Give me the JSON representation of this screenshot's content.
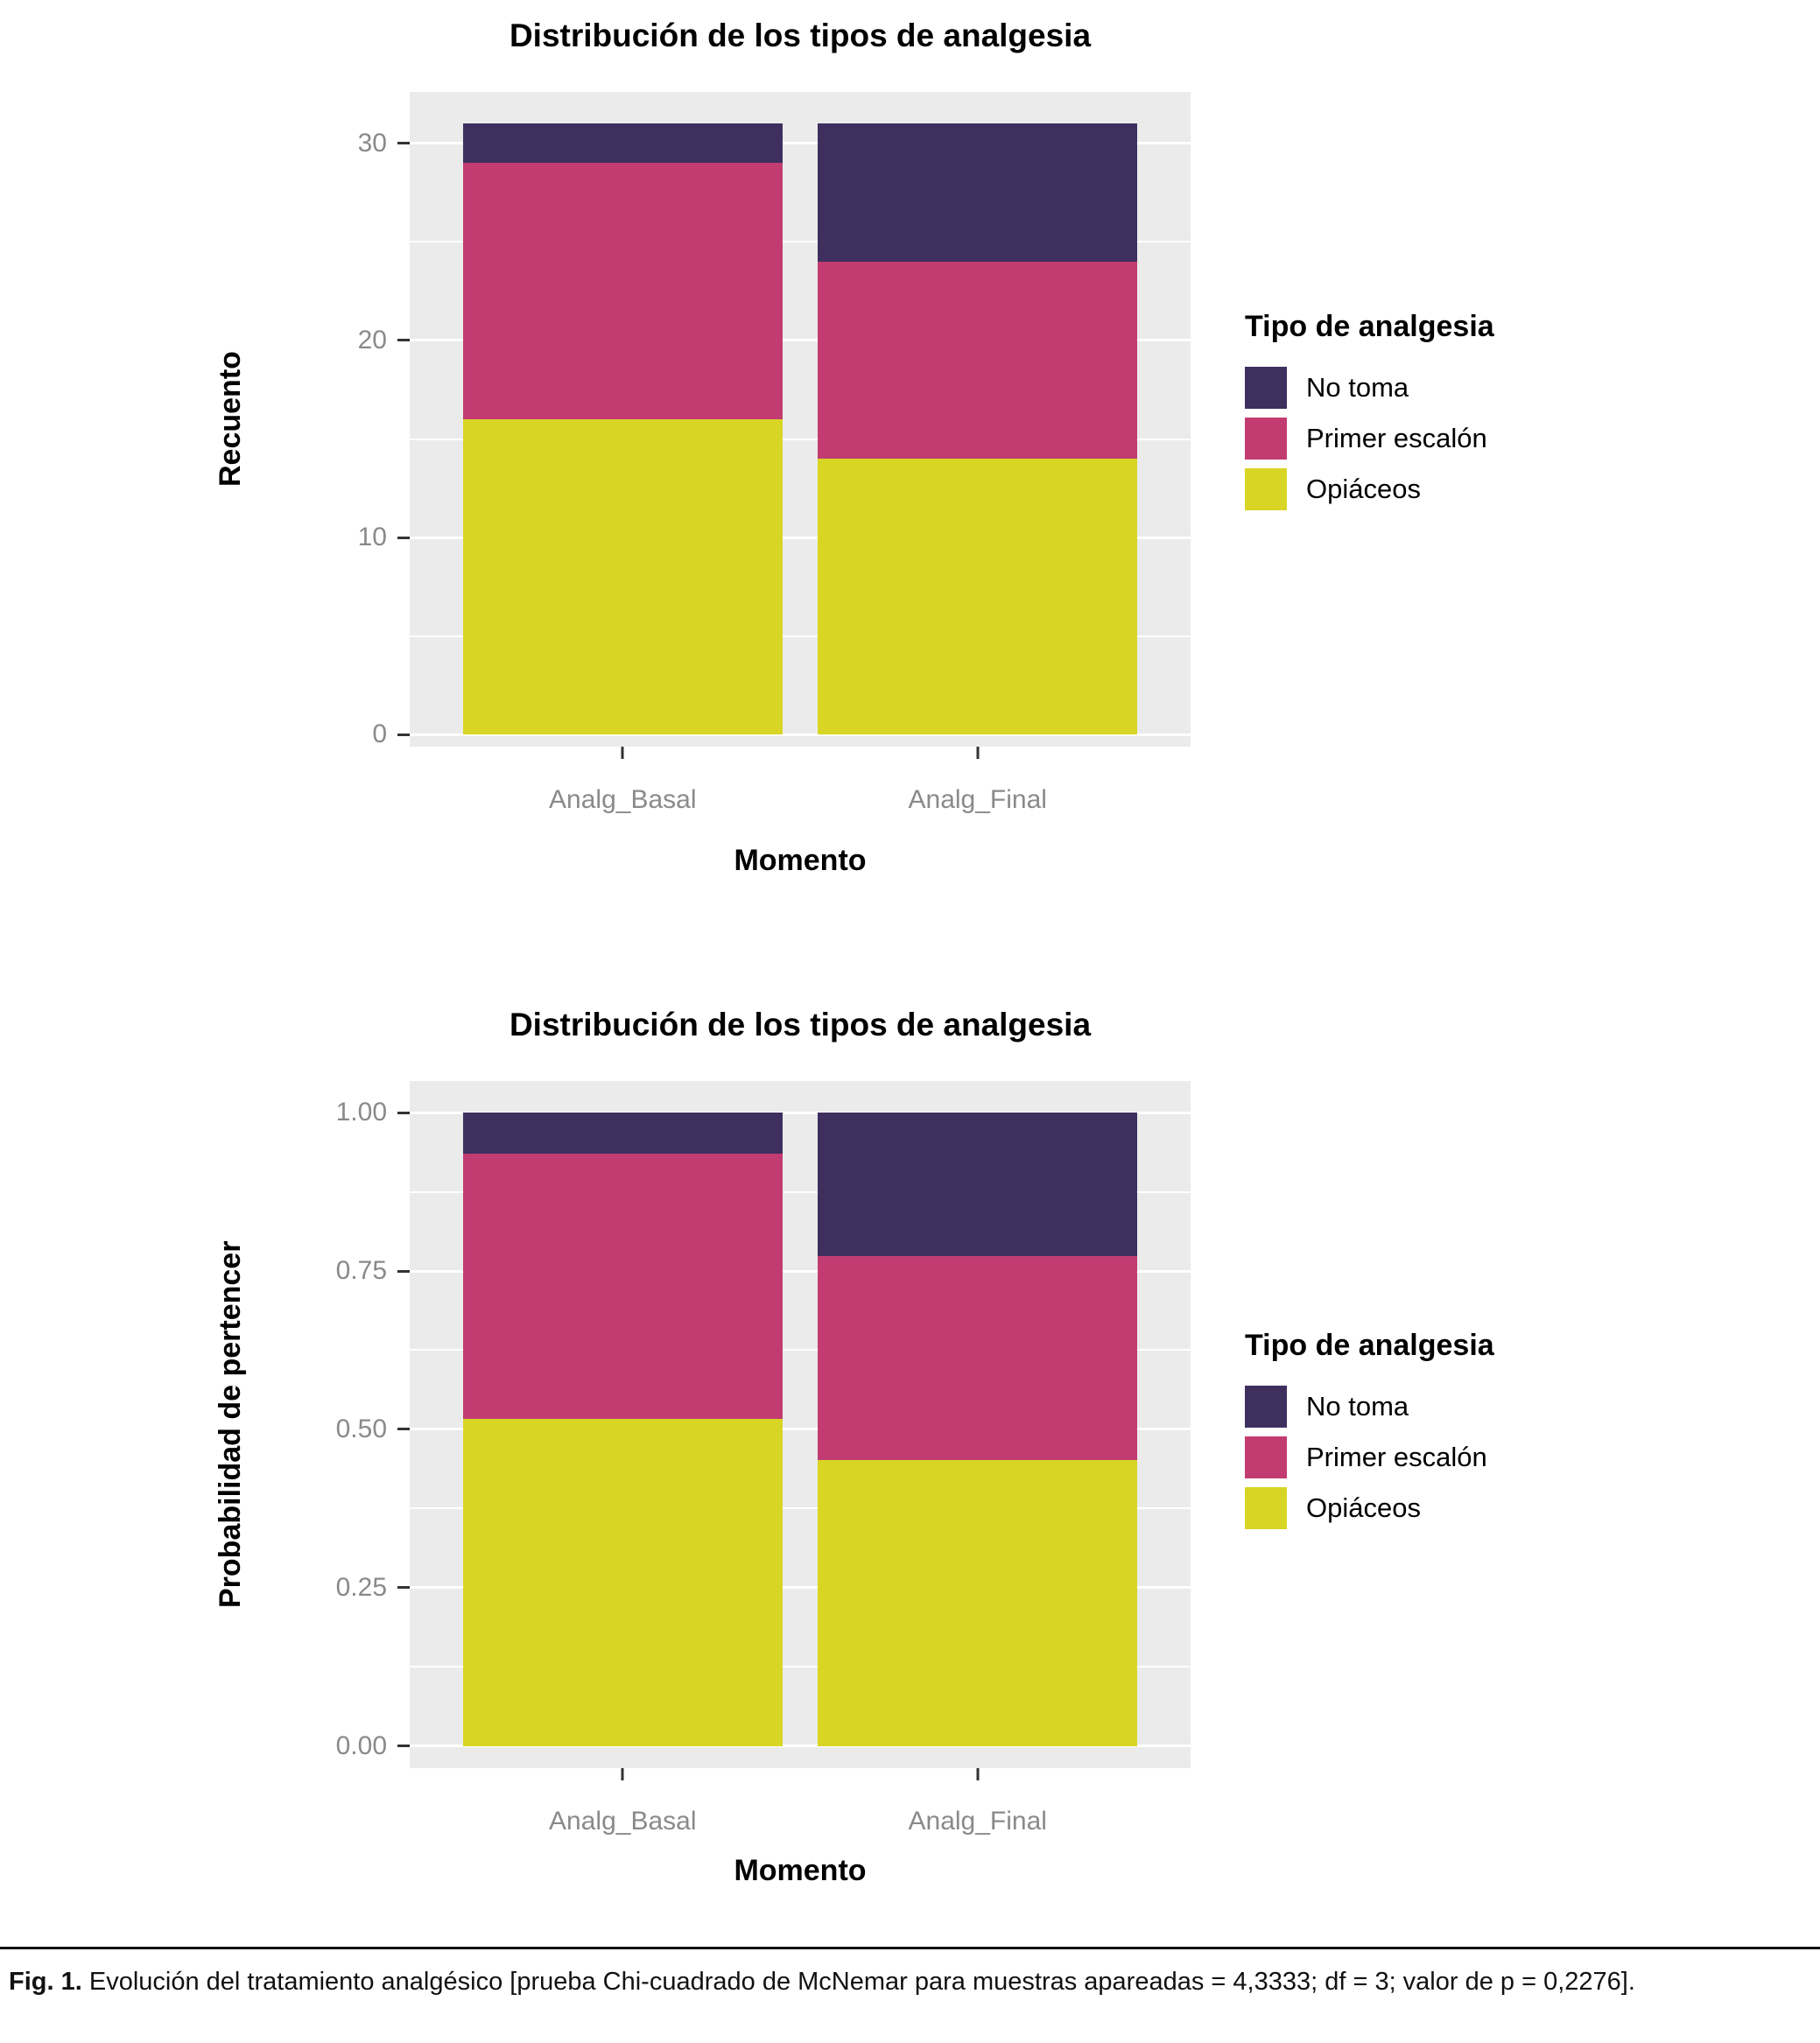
{
  "caption": {
    "label": "Fig. 1.",
    "text": "Evolución del tratamiento analgésico [prueba Chi-cuadrado de McNemar para muestras apareadas = 4,3333; df = 3; valor de p = 0,2276]."
  },
  "palette": {
    "no_toma": "#3F2F5F",
    "primer_escalon": "#C23C72",
    "opiaceos": "#D8D525",
    "panel_background": "#EBEBEB",
    "gridline": "#FFFFFF",
    "tick_label": "#8A8A8A",
    "axis_tick": "#333333"
  },
  "chart_data": [
    {
      "type": "bar",
      "stacked": true,
      "title": "Distribución de los tipos de analgesia",
      "xlabel": "Momento",
      "ylabel": "Recuento",
      "legend_title": "Tipo de analgesia",
      "legend_position": "right",
      "grid": true,
      "categories": [
        "Analg_Basal",
        "Analg_Final"
      ],
      "series": [
        {
          "name": "No toma",
          "color": "#3F2F5F",
          "values": [
            2,
            7
          ]
        },
        {
          "name": "Primer escalón",
          "color": "#C23C72",
          "values": [
            13,
            10
          ]
        },
        {
          "name": "Opiáceos",
          "color": "#D8D525",
          "values": [
            16,
            14
          ]
        }
      ],
      "ylim": [
        -0.6,
        32.6
      ],
      "yticks": [
        0,
        10,
        20,
        30
      ],
      "ytick_labels": [
        "0",
        "10",
        "20",
        "30"
      ],
      "minor_breaks": [
        5,
        15,
        25
      ]
    },
    {
      "type": "bar",
      "stacked": true,
      "title": "Distribución de los tipos de analgesia",
      "xlabel": "Momento",
      "ylabel": "Probabilidad de pertencer",
      "legend_title": "Tipo de analgesia",
      "legend_position": "right",
      "grid": true,
      "categories": [
        "Analg_Basal",
        "Analg_Final"
      ],
      "series": [
        {
          "name": "No toma",
          "color": "#3F2F5F",
          "values": [
            0.0645,
            0.2258
          ]
        },
        {
          "name": "Primer escalón",
          "color": "#C23C72",
          "values": [
            0.4194,
            0.3226
          ]
        },
        {
          "name": "Opiáceos",
          "color": "#D8D525",
          "values": [
            0.5161,
            0.4516
          ]
        }
      ],
      "ylim": [
        -0.035,
        1.05
      ],
      "yticks": [
        0,
        0.25,
        0.5,
        0.75,
        1.0
      ],
      "ytick_labels": [
        "0.00",
        "0.25",
        "0.50",
        "0.75",
        "1.00"
      ],
      "minor_breaks": [
        0.125,
        0.375,
        0.625,
        0.875
      ]
    }
  ]
}
